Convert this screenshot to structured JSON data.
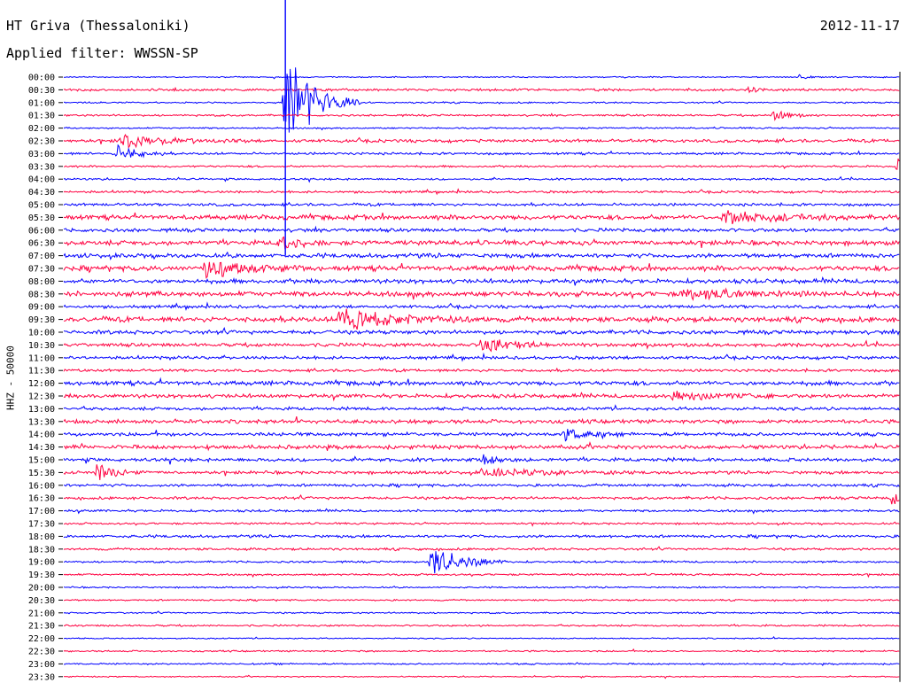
{
  "header": {
    "station": "HT Griva (Thessaloniki)",
    "filter": "Applied filter: WWSSN-SP",
    "date": "2012-11-17"
  },
  "chart_data": {
    "type": "line",
    "title": "HT Griva (Thessaloniki)",
    "ylabel": "HHZ - 50000",
    "colors": {
      "even": "#0000ff",
      "odd": "#ff0040",
      "axis": "#000000"
    },
    "row_labels": [
      "00:00",
      "00:30",
      "01:00",
      "01:30",
      "02:00",
      "02:30",
      "03:00",
      "03:30",
      "04:00",
      "04:30",
      "05:00",
      "05:30",
      "06:00",
      "06:30",
      "07:00",
      "07:30",
      "08:00",
      "08:30",
      "09:00",
      "09:30",
      "10:00",
      "10:30",
      "11:00",
      "11:30",
      "12:00",
      "12:30",
      "13:00",
      "13:30",
      "14:00",
      "14:30",
      "15:00",
      "15:30",
      "16:00",
      "16:30",
      "17:00",
      "17:30",
      "18:00",
      "18:30",
      "19:00",
      "19:30",
      "20:00",
      "20:30",
      "21:00",
      "21:30",
      "22:00",
      "22:30",
      "23:00",
      "23:30"
    ],
    "row_noise": [
      0.6,
      1.2,
      0.8,
      1.0,
      0.8,
      1.6,
      1.2,
      1.0,
      1.0,
      1.2,
      1.4,
      2.4,
      1.8,
      2.4,
      2.2,
      2.6,
      2.2,
      2.6,
      1.6,
      2.6,
      2.0,
      1.8,
      1.6,
      1.4,
      2.2,
      2.0,
      1.6,
      2.0,
      1.8,
      2.0,
      1.8,
      1.6,
      1.4,
      1.4,
      1.2,
      1.0,
      1.4,
      1.2,
      1.0,
      1.0,
      0.8,
      0.8,
      0.8,
      0.9,
      0.6,
      0.8,
      0.8,
      0.6
    ],
    "events": [
      {
        "row": 0,
        "t": 0.88,
        "amp": 3,
        "dur": 0.01
      },
      {
        "row": 1,
        "t": 0.82,
        "amp": 4,
        "dur": 0.01
      },
      {
        "row": 2,
        "t": 0.265,
        "amp": 60,
        "dur": 0.03
      },
      {
        "row": 3,
        "t": 0.85,
        "amp": 6,
        "dur": 0.02
      },
      {
        "row": 5,
        "t": 0.07,
        "amp": 8,
        "dur": 0.05
      },
      {
        "row": 6,
        "t": 0.065,
        "amp": 12,
        "dur": 0.02
      },
      {
        "row": 7,
        "t": 0.998,
        "amp": 8,
        "dur": 0.005
      },
      {
        "row": 11,
        "t": 0.79,
        "amp": 8,
        "dur": 0.05
      },
      {
        "row": 13,
        "t": 0.26,
        "amp": 8,
        "dur": 0.02
      },
      {
        "row": 15,
        "t": 0.17,
        "amp": 12,
        "dur": 0.04
      },
      {
        "row": 17,
        "t": 0.74,
        "amp": 7,
        "dur": 0.05
      },
      {
        "row": 19,
        "t": 0.33,
        "amp": 12,
        "dur": 0.06
      },
      {
        "row": 21,
        "t": 0.5,
        "amp": 9,
        "dur": 0.04
      },
      {
        "row": 25,
        "t": 0.73,
        "amp": 6,
        "dur": 0.04
      },
      {
        "row": 28,
        "t": 0.6,
        "amp": 9,
        "dur": 0.02
      },
      {
        "row": 30,
        "t": 0.5,
        "amp": 6,
        "dur": 0.02
      },
      {
        "row": 31,
        "t": 0.04,
        "amp": 10,
        "dur": 0.02
      },
      {
        "row": 31,
        "t": 0.5,
        "amp": 5,
        "dur": 0.06
      },
      {
        "row": 33,
        "t": 0.99,
        "amp": 8,
        "dur": 0.015
      },
      {
        "row": 38,
        "t": 0.44,
        "amp": 22,
        "dur": 0.03
      }
    ],
    "spike": {
      "row_start": 0,
      "row_end": 14,
      "t": 0.265
    }
  }
}
